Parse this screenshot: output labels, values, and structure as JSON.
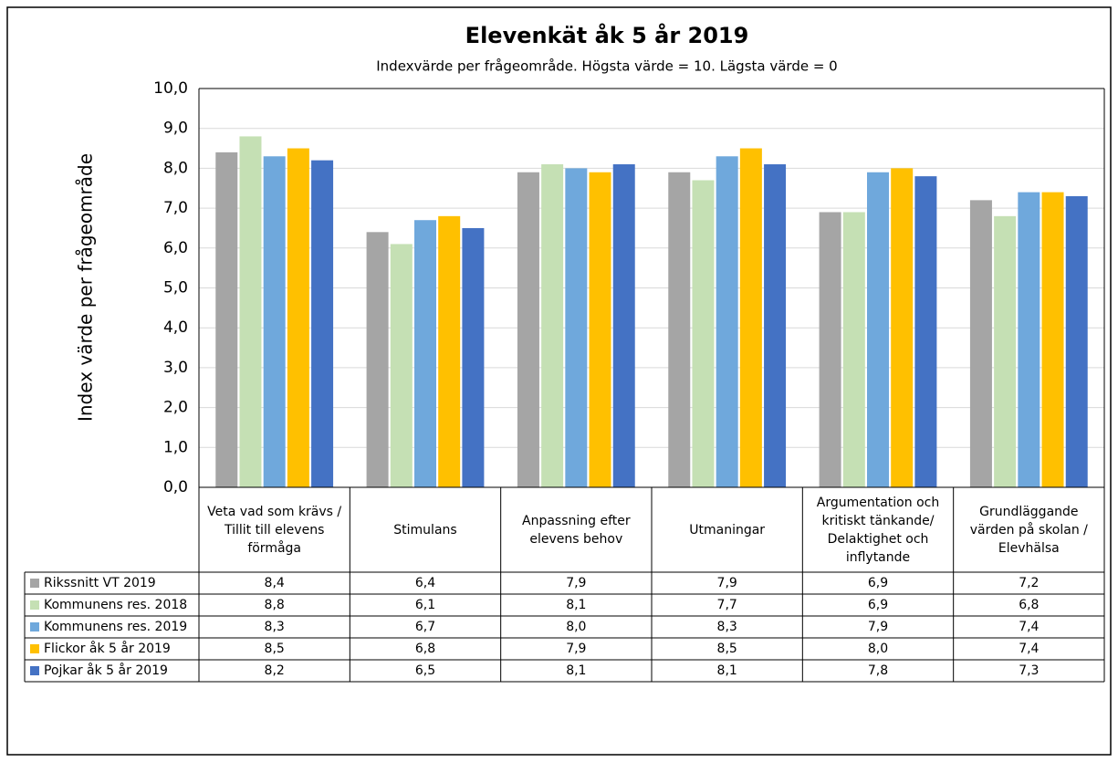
{
  "chart_data": {
    "type": "bar",
    "title": "Elevenkät åk 5 år 2019",
    "subtitle": "Indexvärde per frågeområde. Högsta värde = 10. Lägsta värde = 0",
    "y_label": "Index värde per frågeområde",
    "categories": [
      "Veta vad som krävs / Tillit till elevens förmåga",
      "Stimulans",
      "Anpassning efter elevens behov",
      "Utmaningar",
      "Argumentation och kritiskt tänkande/ Delaktighet och inflytande",
      "Grundläggande värden på skolan / Elevhälsa"
    ],
    "series": [
      {
        "name": "Rikssnitt VT 2019",
        "color": "#a5a5a5",
        "values": [
          8.4,
          6.4,
          7.9,
          7.9,
          6.9,
          7.2
        ],
        "value_labels": [
          "8,4",
          "6,4",
          "7,9",
          "7,9",
          "6,9",
          "7,2"
        ]
      },
      {
        "name": "Kommunens res. 2018",
        "color": "#c5e0b4",
        "values": [
          8.8,
          6.1,
          8.1,
          7.7,
          6.9,
          6.8
        ],
        "value_labels": [
          "8,8",
          "6,1",
          "8,1",
          "7,7",
          "6,9",
          "6,8"
        ]
      },
      {
        "name": "Kommunens res. 2019",
        "color": "#6fa8dc",
        "values": [
          8.3,
          6.7,
          8.0,
          8.3,
          7.9,
          7.4
        ],
        "value_labels": [
          "8,3",
          "6,7",
          "8,0",
          "8,3",
          "7,9",
          "7,4"
        ]
      },
      {
        "name": "Flickor åk 5 år 2019",
        "color": "#ffc000",
        "values": [
          8.5,
          6.8,
          7.9,
          8.5,
          8.0,
          7.4
        ],
        "value_labels": [
          "8,5",
          "6,8",
          "7,9",
          "8,5",
          "8,0",
          "7,4"
        ]
      },
      {
        "name": "Pojkar åk 5 år 2019",
        "color": "#4472c4",
        "values": [
          8.2,
          6.5,
          8.1,
          8.1,
          7.8,
          7.3
        ],
        "value_labels": [
          "8,2",
          "6,5",
          "8,1",
          "8,1",
          "7,8",
          "7,3"
        ]
      }
    ],
    "ylim": [
      0,
      10
    ],
    "yticks": [
      {
        "value": 0,
        "label": "0,0"
      },
      {
        "value": 1,
        "label": "1,0"
      },
      {
        "value": 2,
        "label": "2,0"
      },
      {
        "value": 3,
        "label": "3,0"
      },
      {
        "value": 4,
        "label": "4,0"
      },
      {
        "value": 5,
        "label": "5,0"
      },
      {
        "value": 6,
        "label": "6,0"
      },
      {
        "value": 7,
        "label": "7,0"
      },
      {
        "value": 8,
        "label": "8,0"
      },
      {
        "value": 9,
        "label": "9,0"
      },
      {
        "value": 10,
        "label": "10,0"
      }
    ],
    "grid": true
  }
}
